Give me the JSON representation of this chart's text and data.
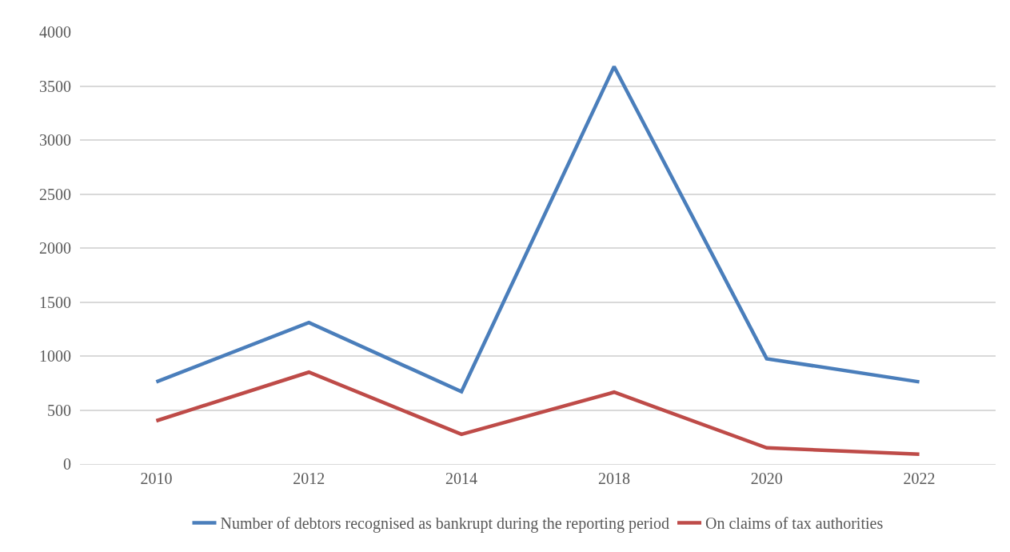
{
  "chart_data": {
    "type": "line",
    "categories": [
      "2010",
      "2012",
      "2014",
      "2018",
      "2020",
      "2022"
    ],
    "series": [
      {
        "name": "Number of debtors recognised as bankrupt during the reporting period",
        "color": "#4a7ebb",
        "values": [
          760,
          1310,
          670,
          3680,
          975,
          760
        ]
      },
      {
        "name": "On claims of tax authorities",
        "color": "#be4b48",
        "values": [
          400,
          850,
          275,
          665,
          150,
          90
        ]
      }
    ],
    "ylim": [
      0,
      4000
    ],
    "yticks": [
      0,
      500,
      1000,
      1500,
      2000,
      2500,
      3000,
      3500,
      4000
    ],
    "grid": "y",
    "legend": "bottom",
    "marker": "none",
    "line_style": "solid"
  }
}
